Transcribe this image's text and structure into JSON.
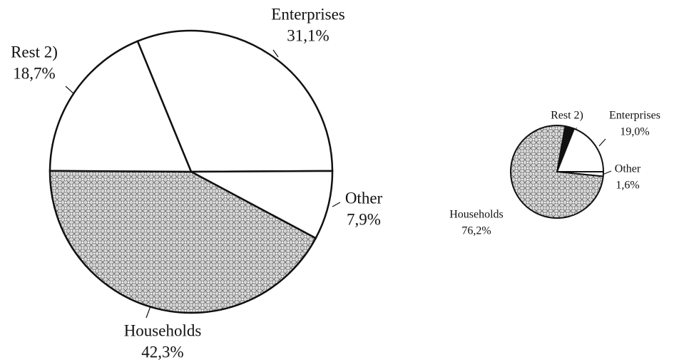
{
  "chart_data": [
    {
      "type": "pie",
      "categories": [
        "Enterprises",
        "Other",
        "Households",
        "Rest 2)"
      ],
      "values": [
        31.1,
        7.9,
        42.3,
        18.7
      ],
      "value_labels": [
        "31,1%",
        "7,9%",
        "42,3%",
        "18,7%"
      ],
      "colors": [
        "#ffffff",
        "#ffffff",
        "#d4d4d4",
        "#ffffff"
      ],
      "patterns": [
        "none",
        "none",
        "crosshatch",
        "none"
      ]
    },
    {
      "type": "pie",
      "categories": [
        "Rest 2)",
        "Enterprises",
        "Other",
        "Households"
      ],
      "values": [
        3.2,
        19.0,
        1.6,
        76.2
      ],
      "value_labels": [
        "3,2%",
        "19,0%",
        "1,6%",
        "76,2%"
      ],
      "colors": [
        "#111111",
        "#ffffff",
        "#ffffff",
        "#d4d4d4"
      ],
      "patterns": [
        "none",
        "none",
        "none",
        "crosshatch"
      ]
    }
  ]
}
